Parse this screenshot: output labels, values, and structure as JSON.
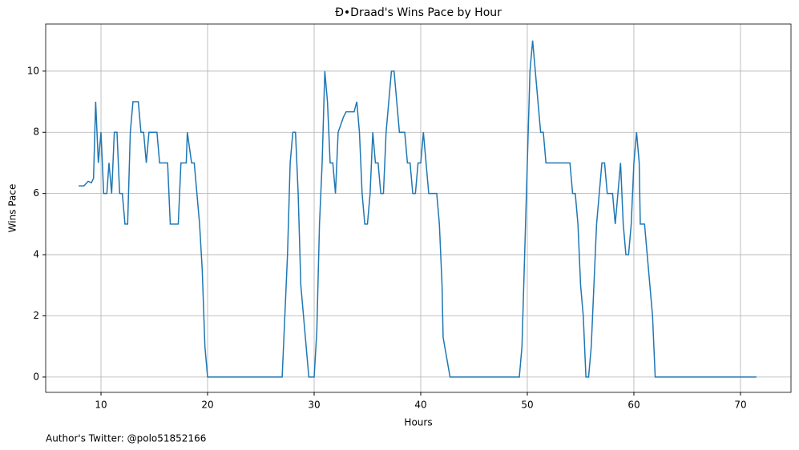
{
  "chart_data": {
    "type": "line",
    "title": "Đ•Draad's Wins Pace by Hour",
    "xlabel": "Hours",
    "ylabel": "Wins Pace",
    "annotation": "Author's Twitter: @polo51852166",
    "x": [
      7.9,
      8.4,
      8.8,
      9.1,
      9.3,
      9.5,
      9.75,
      10,
      10.25,
      10.55,
      10.75,
      11,
      11.25,
      11.5,
      11.75,
      12,
      12.25,
      12.5,
      12.75,
      13,
      13.25,
      13.5,
      13.75,
      14,
      14.25,
      14.5,
      14.75,
      15,
      15.25,
      15.5,
      16,
      16.25,
      16.5,
      17,
      17.25,
      17.5,
      17.75,
      18,
      18.1,
      18.5,
      18.75,
      19,
      19.25,
      19.5,
      19.75,
      20,
      27,
      27.25,
      27.5,
      27.75,
      28,
      28.25,
      28.5,
      28.75,
      29,
      29.5,
      30,
      30.25,
      30.5,
      30.75,
      31,
      31.25,
      31.5,
      31.75,
      32,
      32.25,
      32.5,
      32.75,
      33,
      33.5,
      33.75,
      34,
      34.25,
      34.5,
      34.75,
      35,
      35.25,
      35.5,
      35.75,
      36,
      36.25,
      36.5,
      36.75,
      37,
      37.25,
      37.5,
      37.75,
      38,
      38.5,
      38.75,
      39,
      39.25,
      39.5,
      39.75,
      40,
      40.25,
      40.5,
      40.75,
      41,
      41.5,
      41.75,
      42,
      42.1,
      42.5,
      42.75,
      49.25,
      49.5,
      49.75,
      50,
      50.25,
      50.5,
      50.75,
      51,
      51.25,
      51.5,
      51.75,
      52,
      54,
      54.25,
      54.5,
      54.75,
      55,
      55.25,
      55.5,
      55.75,
      56,
      56.25,
      56.5,
      56.75,
      57,
      57.25,
      57.5,
      57.75,
      58,
      58.25,
      58.5,
      58.75,
      59,
      59.25,
      59.5,
      59.75,
      60,
      60.25,
      60.5,
      60.6,
      61,
      61.25,
      61.5,
      61.75,
      62,
      71.5
    ],
    "series": [
      {
        "name": "Wins Pace",
        "color": "#1f77b4",
        "values": [
          6.25,
          6.25,
          6.4,
          6.35,
          6.5,
          9,
          7,
          8,
          6,
          6,
          7,
          6,
          8,
          8,
          6,
          6,
          5,
          5,
          8,
          9,
          9,
          9,
          8,
          8,
          7,
          8,
          8,
          8,
          8,
          7,
          7,
          7,
          5,
          5,
          5,
          7,
          7,
          7,
          8,
          7,
          7,
          6,
          5,
          3.5,
          1,
          0,
          0,
          2,
          4,
          7,
          8,
          8,
          6,
          3,
          2,
          0,
          0,
          1.5,
          5,
          7,
          10,
          9,
          7,
          7,
          6,
          8,
          8.25,
          8.5,
          8.67,
          8.67,
          8.67,
          9,
          8,
          6,
          5,
          5,
          6,
          8,
          7,
          7,
          6,
          6,
          8,
          9,
          10,
          10,
          9,
          8,
          8,
          7,
          7,
          6,
          6,
          7,
          7,
          8,
          7,
          6,
          6,
          6,
          5,
          3,
          1.3,
          0.5,
          0,
          0,
          1,
          4,
          7,
          10,
          11,
          10,
          9,
          8,
          8,
          7,
          7,
          7,
          6,
          6,
          5,
          3,
          2,
          0,
          0,
          1,
          3,
          5,
          6,
          7,
          7,
          6,
          6,
          6,
          5,
          6,
          7,
          5,
          4,
          4,
          5,
          7,
          8,
          7,
          5,
          5,
          4,
          3,
          2,
          0,
          0
        ]
      }
    ],
    "xlim": [
      4.81,
      74.74
    ],
    "ylim": [
      -0.5,
      11.54
    ],
    "xticks": [
      10,
      20,
      30,
      40,
      50,
      60,
      70
    ],
    "yticks": [
      0,
      2,
      4,
      6,
      8,
      10
    ],
    "grid": true
  }
}
